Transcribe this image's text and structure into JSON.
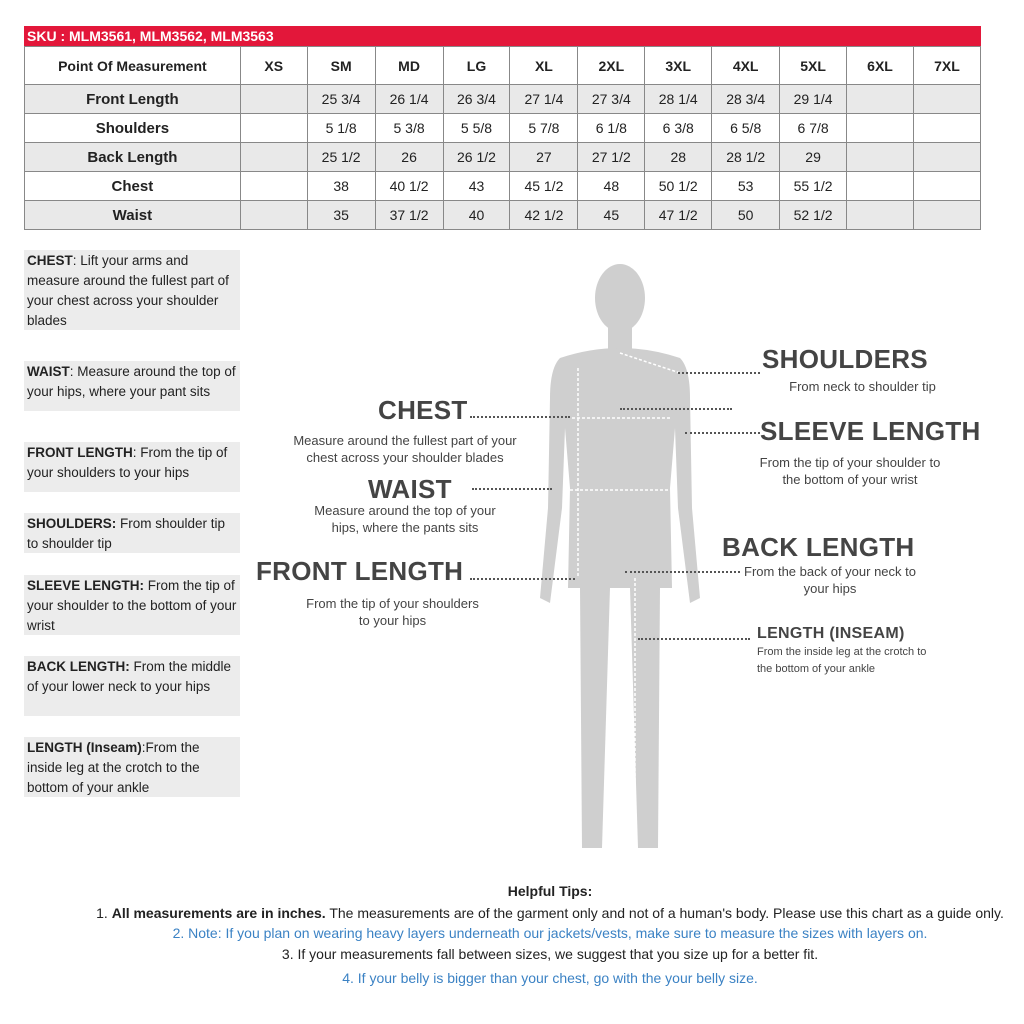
{
  "sku": "SKU : MLM3561, MLM3562, MLM3563",
  "table": {
    "headers": [
      "Point Of Measurement",
      "XS",
      "SM",
      "MD",
      "LG",
      "XL",
      "2XL",
      "3XL",
      "4XL",
      "5XL",
      "6XL",
      "7XL"
    ],
    "rows": [
      [
        "Front Length",
        "",
        "25 3/4",
        "26 1/4",
        "26 3/4",
        "27 1/4",
        "27 3/4",
        "28 1/4",
        "28 3/4",
        "29 1/4",
        "",
        ""
      ],
      [
        "Shoulders",
        "",
        "5 1/8",
        "5 3/8",
        "5 5/8",
        "5 7/8",
        "6 1/8",
        "6 3/8",
        "6 5/8",
        "6 7/8",
        "",
        ""
      ],
      [
        "Back Length",
        "",
        "25 1/2",
        "26",
        "26 1/2",
        "27",
        "27 1/2",
        "28",
        "28 1/2",
        "29",
        "",
        ""
      ],
      [
        "Chest",
        "",
        "38",
        "40 1/2",
        "43",
        "45 1/2",
        "48",
        "50 1/2",
        "53",
        "55 1/2",
        "",
        ""
      ],
      [
        "Waist",
        "",
        "35",
        "37 1/2",
        "40",
        "42 1/2",
        "45",
        "47 1/2",
        "50",
        "52 1/2",
        "",
        ""
      ]
    ]
  },
  "sidebar": [
    {
      "term": "CHEST",
      "text": ": Lift your arms  and measure around the fullest part of your chest across your shoulder blades"
    },
    {
      "term": "WAIST",
      "text": ":  Measure around the top of your hips, where your pant sits"
    },
    {
      "term": "FRONT LENGTH",
      "text": ": From the tip of your shoulders to your hips"
    },
    {
      "term": "SHOULDERS:",
      "text": " From shoulder tip to shoulder tip"
    },
    {
      "term": "SLEEVE LENGTH:",
      "text": " From the tip of your shoulder to the bottom of your wrist"
    },
    {
      "term": "BACK LENGTH:",
      "text": " From the middle of your lower neck to your hips"
    },
    {
      "term": "LENGTH (Inseam)",
      "text": ":From the inside leg at the crotch to the bottom of your ankle"
    }
  ],
  "diagram": {
    "chest": {
      "title": "CHEST",
      "desc": "Measure around the fullest part of your chest across your shoulder blades"
    },
    "waist": {
      "title": "WAIST",
      "desc": "Measure around the top of your hips, where the pants sits"
    },
    "front_length": {
      "title": "FRONT LENGTH",
      "desc": "From the tip of your shoulders to your hips"
    },
    "shoulders": {
      "title": "SHOULDERS",
      "desc": "From neck to shoulder tip"
    },
    "sleeve_length": {
      "title": "SLEEVE LENGTH",
      "desc": "From the tip of your shoulder to the bottom of your wrist"
    },
    "back_length": {
      "title": "BACK LENGTH",
      "desc": "From the back of your neck to your hips"
    },
    "inseam": {
      "title": "LENGTH (INSEAM)",
      "desc": "From the inside leg at the crotch to the bottom of your ankle"
    }
  },
  "tips": {
    "title": "Helpful Tips:",
    "t1_prefix": "1. ",
    "t1_bold": "All measurements are in inches.",
    "t1_rest": " The measurements are of the garment only and not of a human's body. Please use this chart as a guide only.",
    "t2": "2. Note: If you plan on wearing heavy layers underneath our jackets/vests, make sure to measure the sizes with layers on.",
    "t3": "3. If your measurements fall between sizes, we suggest that you size up for a better fit.",
    "t4": "4. If your belly is bigger than your chest, go with the your belly size."
  },
  "colors": {
    "accent": "#e3173a",
    "link": "#3b82c4"
  }
}
